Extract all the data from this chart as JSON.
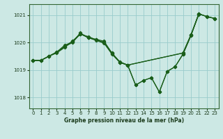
{
  "title": "Graphe pression niveau de la mer (hPa)",
  "background_color": "#cce8e4",
  "grid_color": "#99cccc",
  "line_color": "#1a5e1a",
  "xlim": [
    -0.5,
    23.5
  ],
  "ylim": [
    1017.6,
    1021.4
  ],
  "yticks": [
    1018,
    1019,
    1020,
    1021
  ],
  "xticks": [
    0,
    1,
    2,
    3,
    4,
    5,
    6,
    7,
    8,
    9,
    10,
    11,
    12,
    13,
    14,
    15,
    16,
    17,
    18,
    19,
    20,
    21,
    22,
    23
  ],
  "lines": [
    {
      "x": [
        0,
        1,
        2,
        3,
        4,
        5,
        6,
        7,
        8,
        9,
        10,
        11,
        12,
        19,
        20,
        21,
        22,
        23
      ],
      "y": [
        1019.35,
        1019.35,
        1019.5,
        1019.65,
        1019.85,
        1020.0,
        1020.32,
        1020.18,
        1020.12,
        1020.05,
        1019.62,
        1019.3,
        1019.18,
        1019.62,
        1020.28,
        1021.05,
        1020.95,
        1020.88
      ]
    },
    {
      "x": [
        0,
        1,
        2,
        3,
        4,
        5,
        6,
        7,
        8,
        9,
        10,
        11,
        12,
        13,
        14,
        15,
        16,
        17,
        18,
        19,
        20,
        21,
        22,
        23
      ],
      "y": [
        1019.35,
        1019.35,
        1019.5,
        1019.65,
        1019.9,
        1020.02,
        1020.35,
        1020.18,
        1020.08,
        1019.98,
        1019.58,
        1019.28,
        1019.18,
        1018.45,
        1018.62,
        1018.72,
        1018.2,
        1018.95,
        1019.12,
        1019.58,
        1020.25,
        1021.05,
        1020.95,
        1020.88
      ]
    },
    {
      "x": [
        0,
        1,
        2,
        3,
        4,
        5,
        6,
        7,
        8,
        9,
        10,
        11,
        12,
        19,
        20,
        21
      ],
      "y": [
        1019.35,
        1019.35,
        1019.5,
        1019.62,
        1019.82,
        1020.05,
        1020.3,
        1020.22,
        1020.1,
        1020.0,
        1019.62,
        1019.28,
        1019.18,
        1019.62,
        1020.28,
        1021.02
      ]
    },
    {
      "x": [
        0,
        1,
        2,
        3,
        4,
        5,
        6,
        7,
        8,
        9,
        10,
        11,
        12,
        13,
        14,
        15,
        16,
        17,
        18,
        19,
        20,
        21,
        22,
        23
      ],
      "y": [
        1019.35,
        1019.35,
        1019.5,
        1019.65,
        1019.85,
        1020.05,
        1020.32,
        1020.18,
        1020.1,
        1020.0,
        1019.6,
        1019.28,
        1019.18,
        1018.45,
        1018.62,
        1018.72,
        1018.2,
        1018.95,
        1019.12,
        1019.58,
        1020.25,
        1021.05,
        1020.95,
        1020.88
      ]
    }
  ]
}
